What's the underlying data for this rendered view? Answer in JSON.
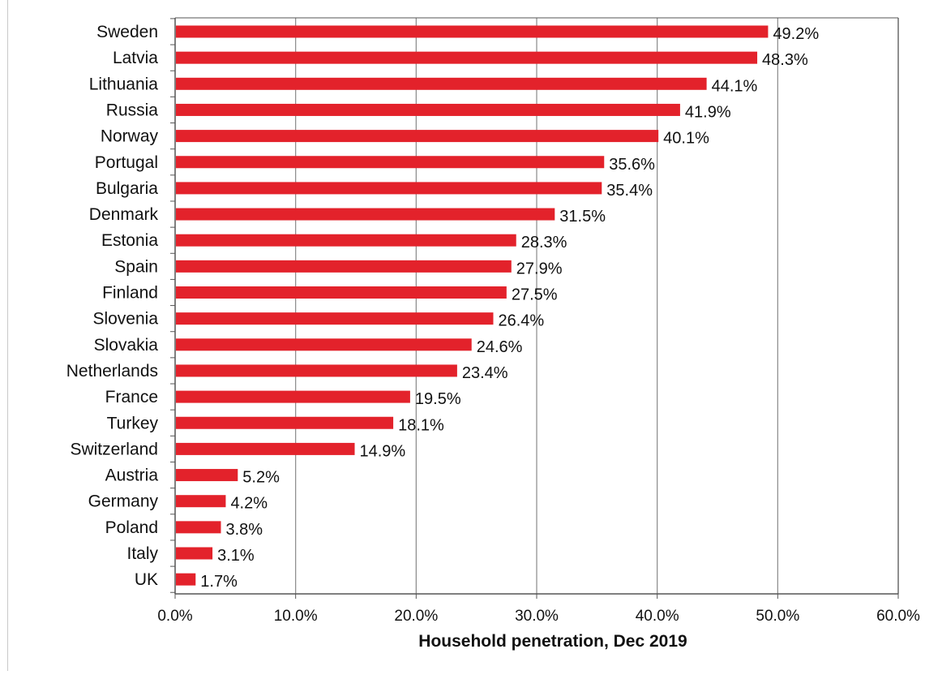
{
  "chart_data": {
    "type": "bar",
    "orientation": "horizontal",
    "categories": [
      "Sweden",
      "Latvia",
      "Lithuania",
      "Russia",
      "Norway",
      "Portugal",
      "Bulgaria",
      "Denmark",
      "Estonia",
      "Spain",
      "Finland",
      "Slovenia",
      "Slovakia",
      "Netherlands",
      "France",
      "Turkey",
      "Switzerland",
      "Austria",
      "Germany",
      "Poland",
      "Italy",
      "UK"
    ],
    "values": [
      49.2,
      48.3,
      44.1,
      41.9,
      40.1,
      35.6,
      35.4,
      31.5,
      28.3,
      27.9,
      27.5,
      26.4,
      24.6,
      23.4,
      19.5,
      18.1,
      14.9,
      5.2,
      4.2,
      3.8,
      3.1,
      1.7
    ],
    "value_labels": [
      "49.2%",
      "48.3%",
      "44.1%",
      "41.9%",
      "40.1%",
      "35.6%",
      "35.4%",
      "31.5%",
      "28.3%",
      "27.9%",
      "27.5%",
      "26.4%",
      "24.6%",
      "23.4%",
      "19.5%",
      "18.1%",
      "14.9%",
      "5.2%",
      "4.2%",
      "3.8%",
      "3.1%",
      "1.7%"
    ],
    "xlabel": "Household penetration, Dec 2019",
    "ylabel": "",
    "xlim": [
      0,
      60
    ],
    "x_ticks": [
      0,
      10,
      20,
      30,
      40,
      50,
      60
    ],
    "x_tick_labels": [
      "0.0%",
      "10.0%",
      "20.0%",
      "30.0%",
      "40.0%",
      "50.0%",
      "60.0%"
    ],
    "grid": "vertical",
    "legend": "none",
    "bar_color": "#e3222b",
    "grid_color": "#888888",
    "axis_color": "#555555",
    "text_color": "#111111"
  }
}
